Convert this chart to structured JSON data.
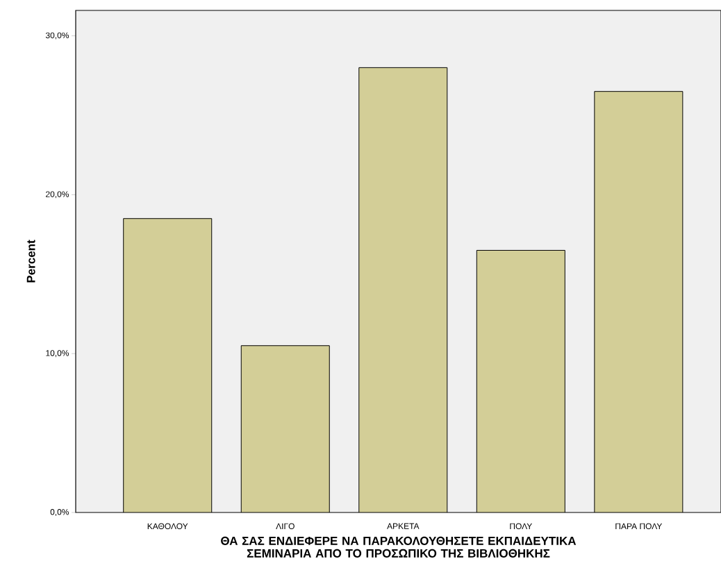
{
  "chart_data": {
    "type": "bar",
    "xlabel": "ΘΑ ΣΑΣ ΕΝΔΙΕΦΕΡΕ ΝΑ ΠΑΡΑΚΟΛΟΥΘΗΣΕΤΕ ΕΚΠΑΙΔΕΥΤΙΚΑ ΣΕΜΙΝΑΡΙΑ ΑΠΟ ΤΟ ΠΡΟΣΩΠΙΚΟ ΤΗΣ ΒΙΒΛΙΟΘΗΚΗΣ",
    "ylabel": "Percent",
    "categories": [
      "ΚΑΘΟΛΟΥ",
      "ΛΙΓΟ",
      "ΑΡΚΕΤΑ",
      "ΠΟΛΥ",
      "ΠΑΡΑ ΠΟΛΥ"
    ],
    "values": [
      18.5,
      10.5,
      28.0,
      16.5,
      26.5
    ],
    "color": "#d3ce97",
    "ylim": [
      0,
      31.6
    ],
    "yticks": [
      {
        "value": 0,
        "label": "0,0%"
      },
      {
        "value": 10,
        "label": "10,0%"
      },
      {
        "value": 20,
        "label": "20,0%"
      },
      {
        "value": 30,
        "label": "30,0%"
      }
    ]
  }
}
